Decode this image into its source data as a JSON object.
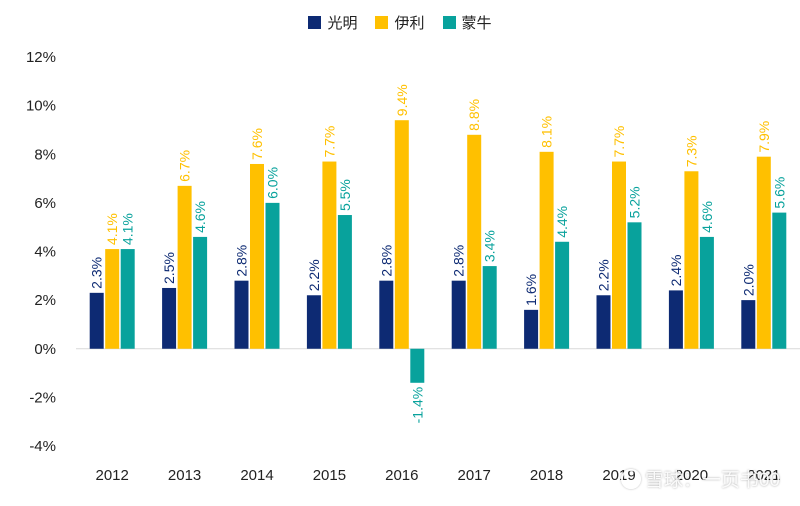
{
  "legend": [
    {
      "name": "光明",
      "color": "#0D2A73"
    },
    {
      "name": "伊利",
      "color": "#FFC000"
    },
    {
      "name": "蒙牛",
      "color": "#08A29C"
    }
  ],
  "watermark": "雪球：一页书00",
  "chart_data": {
    "type": "bar",
    "categories": [
      "2012",
      "2013",
      "2014",
      "2015",
      "2016",
      "2017",
      "2018",
      "2019",
      "2020",
      "2021"
    ],
    "series": [
      {
        "name": "光明",
        "color": "#0D2A73",
        "values": [
          2.3,
          2.5,
          2.8,
          2.2,
          2.8,
          2.8,
          1.6,
          2.2,
          2.4,
          2.0
        ]
      },
      {
        "name": "伊利",
        "color": "#FFC000",
        "values": [
          4.1,
          6.7,
          7.6,
          7.7,
          9.4,
          8.8,
          8.1,
          7.7,
          7.3,
          7.9
        ]
      },
      {
        "name": "蒙牛",
        "color": "#08A29C",
        "values": [
          4.1,
          4.6,
          6.0,
          5.5,
          -1.4,
          3.4,
          4.4,
          5.2,
          4.6,
          5.6
        ]
      }
    ],
    "ylim": [
      -4,
      12
    ],
    "yticks": [
      -4,
      -2,
      0,
      2,
      4,
      6,
      8,
      10,
      12
    ],
    "ytick_format": "%",
    "data_labels": true,
    "legend_position": "top",
    "grid": false
  }
}
